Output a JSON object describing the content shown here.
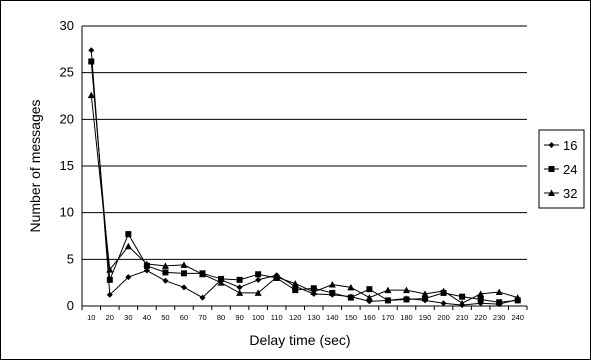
{
  "chart_data": {
    "type": "line",
    "title": "",
    "xlabel": "Delay time (sec)",
    "ylabel": "Number of messages",
    "ylim": [
      0,
      30
    ],
    "yticks": [
      0,
      5,
      10,
      15,
      20,
      25,
      30
    ],
    "grid": "horizontal",
    "legend_position": "right",
    "categories": [
      "10",
      "20",
      "30",
      "40",
      "50",
      "60",
      "70",
      "80",
      "90",
      "100",
      "110",
      "120",
      "130",
      "140",
      "150",
      "160",
      "170",
      "180",
      "190",
      "200",
      "210",
      "220",
      "230",
      "240"
    ],
    "series": [
      {
        "name": "16",
        "marker": "diamond",
        "values": [
          27.4,
          1.2,
          3.1,
          3.8,
          2.7,
          2.0,
          0.9,
          2.8,
          2.0,
          2.8,
          3.3,
          2.1,
          1.3,
          1.2,
          1.0,
          0.5,
          0.6,
          0.8,
          0.6,
          0.3,
          0.1,
          0.3,
          0.2,
          0.7
        ]
      },
      {
        "name": "24",
        "marker": "square",
        "values": [
          26.2,
          2.8,
          7.7,
          4.3,
          3.6,
          3.5,
          3.5,
          2.9,
          2.8,
          3.4,
          3.0,
          1.7,
          1.9,
          1.4,
          0.9,
          1.8,
          0.6,
          0.7,
          0.8,
          1.4,
          1.0,
          0.7,
          0.4,
          0.6
        ]
      },
      {
        "name": "32",
        "marker": "triangle",
        "values": [
          22.6,
          3.9,
          6.4,
          4.5,
          4.3,
          4.4,
          3.4,
          2.5,
          1.4,
          1.4,
          3.1,
          2.4,
          1.5,
          2.3,
          2.0,
          0.9,
          1.7,
          1.7,
          1.3,
          1.6,
          0.3,
          1.3,
          1.5,
          0.9
        ]
      }
    ]
  }
}
